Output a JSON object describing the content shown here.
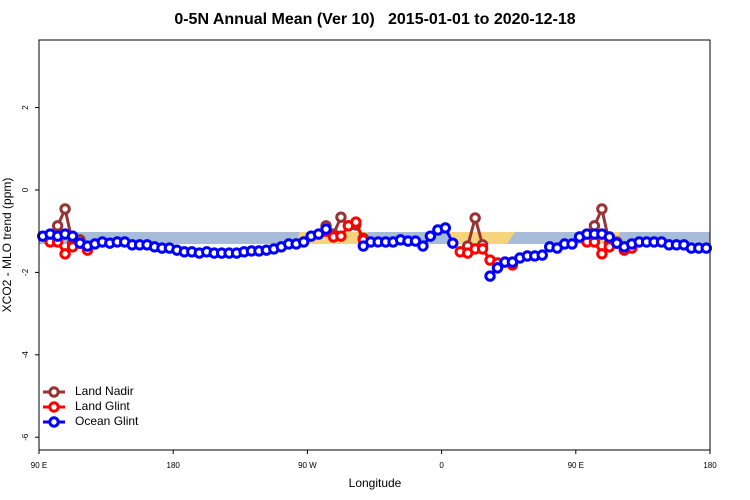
{
  "chart_data": {
    "type": "line",
    "title": "0-5N Annual Mean (Ver 10)   2015-01-01 to 2020-12-18",
    "x_label": "Longitude",
    "y_label": "XCO2 - MLO trend (ppm)",
    "x": [
      92.5,
      97.5,
      102.5,
      107.5,
      112.5,
      117.5,
      122.5,
      127.5,
      132.5,
      137.5,
      142.5,
      147.5,
      152.5,
      157.5,
      162.5,
      167.5,
      172.5,
      177.5,
      182.5,
      187.5,
      192.5,
      197.5,
      202.5,
      207.5,
      212.5,
      217.5,
      222.5,
      227.5,
      232.5,
      237.5,
      242.5,
      247.5,
      252.5,
      257.5,
      262.5,
      267.5,
      272.5,
      277.5,
      282.5,
      287.5,
      292.5,
      297.5,
      302.5,
      307.5,
      312.5,
      317.5,
      322.5,
      327.5,
      332.5,
      337.5,
      342.5,
      347.5,
      352.5,
      357.5,
      362.5,
      367.5,
      372.5,
      377.5,
      382.5,
      387.5,
      392.5,
      397.5,
      402.5,
      407.5,
      412.5,
      417.5,
      422.5,
      427.5,
      432.5,
      437.5,
      442.5,
      447.5,
      452.5,
      457.5,
      462.5,
      467.5,
      472.5,
      477.5,
      482.5,
      487.5,
      492.5,
      497.5,
      502.5,
      507.5,
      512.5,
      517.5,
      522.5,
      527.5,
      532.5,
      537.5
    ],
    "series": [
      {
        "name": "Land Nadir",
        "color": "#993333",
        "values": [
          null,
          null,
          -0.87,
          -0.46,
          -1.29,
          -1.21,
          -1.41,
          null,
          null,
          null,
          null,
          null,
          null,
          null,
          null,
          null,
          null,
          null,
          null,
          null,
          null,
          null,
          null,
          null,
          null,
          null,
          null,
          null,
          null,
          null,
          null,
          null,
          null,
          null,
          null,
          null,
          null,
          null,
          -0.87,
          -1.07,
          -0.66,
          -0.87,
          -0.85,
          -1.17,
          null,
          null,
          null,
          null,
          null,
          null,
          null,
          null,
          null,
          null,
          null,
          null,
          null,
          -1.36,
          -0.68,
          -1.33,
          null,
          null,
          null,
          null,
          null,
          null,
          null,
          null,
          null,
          null,
          null,
          null,
          null,
          -1.07,
          -0.87,
          -0.46,
          -1.29,
          -1.26,
          -1.41,
          null,
          null,
          null,
          null,
          null,
          null,
          null,
          null,
          null,
          null,
          null
        ]
      },
      {
        "name": "Land Glint",
        "color": "#ff0000",
        "values": [
          null,
          -1.26,
          -1.26,
          -1.55,
          -1.38,
          -1.29,
          -1.46,
          null,
          null,
          null,
          null,
          null,
          null,
          null,
          null,
          null,
          null,
          null,
          null,
          null,
          null,
          null,
          null,
          null,
          null,
          null,
          null,
          null,
          null,
          null,
          null,
          null,
          null,
          null,
          null,
          null,
          null,
          null,
          -1.0,
          -1.14,
          -1.12,
          -0.87,
          -0.78,
          -1.21,
          null,
          null,
          null,
          null,
          null,
          null,
          null,
          null,
          null,
          null,
          null,
          null,
          -1.5,
          -1.53,
          -1.43,
          -1.43,
          -1.7,
          -1.77,
          -1.75,
          -1.82,
          null,
          null,
          null,
          null,
          null,
          null,
          null,
          null,
          null,
          -1.26,
          -1.26,
          -1.55,
          -1.38,
          -1.29,
          -1.46,
          -1.41,
          null,
          null,
          null,
          null,
          null,
          null,
          null,
          null,
          null,
          null
        ]
      },
      {
        "name": "Ocean Glint",
        "color": "#0000ff",
        "values": [
          -1.12,
          -1.07,
          -1.12,
          -1.07,
          -1.12,
          -1.29,
          -1.36,
          -1.31,
          -1.26,
          -1.29,
          -1.26,
          -1.26,
          -1.33,
          -1.33,
          -1.33,
          -1.38,
          -1.41,
          -1.41,
          -1.46,
          -1.5,
          -1.5,
          -1.53,
          -1.5,
          -1.53,
          -1.53,
          -1.53,
          -1.53,
          -1.5,
          -1.48,
          -1.48,
          -1.46,
          -1.43,
          -1.38,
          -1.31,
          -1.31,
          -1.26,
          -1.12,
          -1.07,
          -0.95,
          null,
          null,
          null,
          null,
          -1.36,
          -1.26,
          -1.26,
          -1.26,
          -1.26,
          -1.21,
          -1.24,
          -1.24,
          -1.36,
          -1.12,
          -0.97,
          -0.92,
          -1.29,
          null,
          null,
          null,
          null,
          -2.09,
          -1.89,
          -1.75,
          -1.75,
          -1.65,
          -1.6,
          -1.6,
          -1.58,
          -1.38,
          -1.41,
          -1.31,
          -1.31,
          -1.14,
          -1.07,
          -1.07,
          -1.07,
          -1.14,
          -1.29,
          -1.38,
          -1.31,
          -1.26,
          -1.26,
          -1.26,
          -1.26,
          -1.33,
          -1.33,
          -1.33,
          -1.41,
          -1.41,
          -1.41
        ]
      }
    ],
    "xlim": [
      90,
      540
    ],
    "xticks": [
      {
        "value": 90,
        "label": "90 E"
      },
      {
        "value": 180,
        "label": "180"
      },
      {
        "value": 270,
        "label": "90 W"
      },
      {
        "value": 360,
        "label": "0"
      },
      {
        "value": 450,
        "label": "90 E"
      },
      {
        "value": 540,
        "label": "180"
      }
    ],
    "ylim": [
      -6.31,
      3.64
    ],
    "yticks": [
      -6,
      -4,
      -2,
      0,
      2
    ],
    "grid": false,
    "legend": "bottom-left"
  }
}
